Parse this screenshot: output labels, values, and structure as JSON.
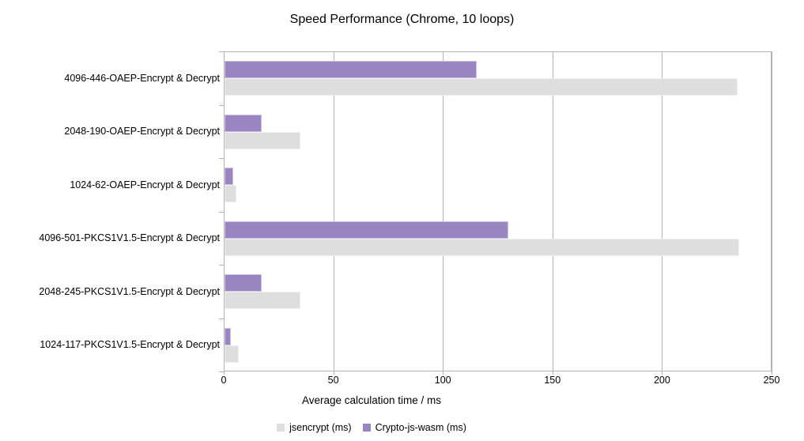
{
  "title": "Speed Performance (Chrome, 10 loops)",
  "chart_data": {
    "type": "bar",
    "orientation": "horizontal",
    "title": "Speed Performance (Chrome, 10 loops)",
    "xlabel": "Average calculation time / ms",
    "ylabel": "",
    "xlim": [
      0,
      250
    ],
    "xticks": [
      0,
      50,
      100,
      150,
      200,
      250
    ],
    "grid": true,
    "legend_position": "bottom",
    "categories": [
      "4096-446-OAEP-Encrypt & Decrypt",
      "2048-190-OAEP-Encrypt & Decrypt",
      "1024-62-OAEP-Encrypt & Decrypt",
      "4096-501-PKCS1V1.5-Encrypt & Decrypt",
      "2048-245-PKCS1V1.5-Encrypt & Decrypt",
      "1024-117-PKCS1V1.5-Encrypt & Decrypt"
    ],
    "series": [
      {
        "name": "jsencrypt (ms)",
        "color": "#dedede",
        "values": [
          234,
          34.5,
          5.5,
          235,
          34.5,
          6.5
        ]
      },
      {
        "name": "Crypto-js-wasm (ms)",
        "color": "#9a85c2",
        "values": [
          115,
          17,
          4,
          129.5,
          17,
          3
        ]
      }
    ]
  }
}
